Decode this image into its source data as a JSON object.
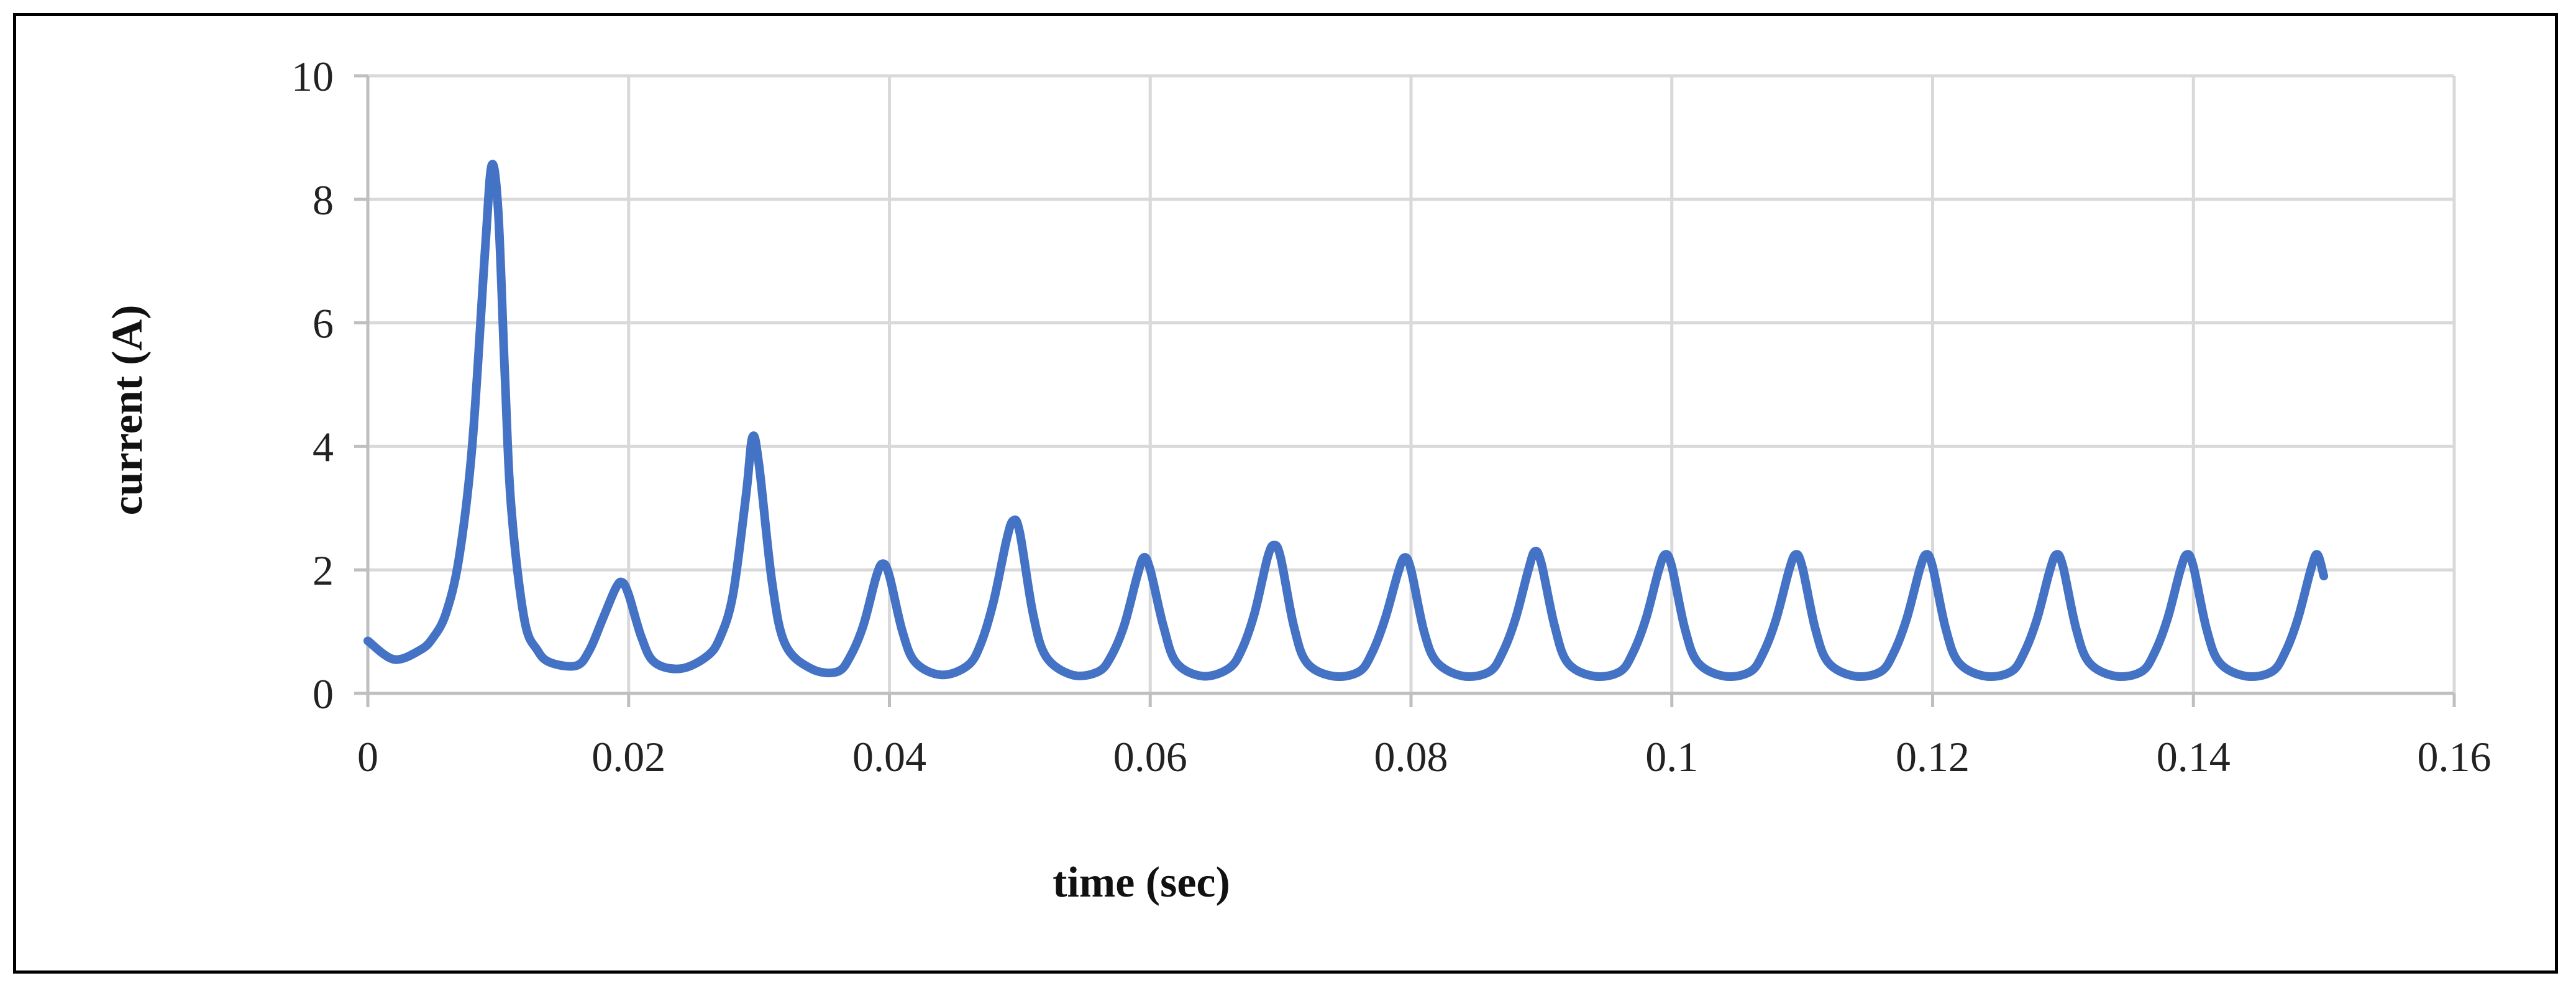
{
  "chart_data": {
    "type": "line",
    "title": "",
    "xlabel": "time (sec)",
    "ylabel": "current (A)",
    "xlim": [
      0,
      0.16
    ],
    "ylim": [
      0,
      10
    ],
    "x_ticks": [
      0,
      0.02,
      0.04,
      0.06,
      0.08,
      0.1,
      0.12,
      0.14,
      0.16
    ],
    "x_tick_labels": [
      "0",
      "0.02",
      "0.04",
      "0.06",
      "0.08",
      "0.1",
      "0.12",
      "0.14",
      "0.16"
    ],
    "y_ticks": [
      0,
      2,
      4,
      6,
      8,
      10
    ],
    "y_tick_labels": [
      "0",
      "2",
      "4",
      "6",
      "8",
      "10"
    ],
    "grid": true,
    "legend": "none",
    "line_color": "#4472C4",
    "series": [
      {
        "x": [
          0,
          0.002,
          0.004,
          0.005,
          0.006,
          0.007,
          0.008,
          0.009,
          0.0095,
          0.01,
          0.0105,
          0.011,
          0.012,
          0.013,
          0.014,
          0.016,
          0.017,
          0.018,
          0.019,
          0.0195,
          0.02,
          0.021,
          0.022,
          0.024,
          0.026,
          0.027,
          0.028,
          0.029,
          0.0295,
          0.03,
          0.031,
          0.032,
          0.034,
          0.036,
          0.037,
          0.038,
          0.039,
          0.0395,
          0.04,
          0.041,
          0.042,
          0.044,
          0.046,
          0.047,
          0.048,
          0.049,
          0.0495,
          0.05,
          0.051,
          0.052,
          0.054,
          0.056,
          0.057,
          0.058,
          0.059,
          0.0595,
          0.06,
          0.061,
          0.062,
          0.064,
          0.066,
          0.067,
          0.068,
          0.069,
          0.0695,
          0.07,
          0.071,
          0.072,
          0.074,
          0.076,
          0.077,
          0.078,
          0.079,
          0.0795,
          0.08,
          0.081,
          0.082,
          0.084,
          0.086,
          0.087,
          0.088,
          0.089,
          0.0895,
          0.09,
          0.091,
          0.092,
          0.094,
          0.096,
          0.097,
          0.098,
          0.099,
          0.0995,
          0.1,
          0.101,
          0.102,
          0.104,
          0.106,
          0.107,
          0.108,
          0.109,
          0.1095,
          0.11,
          0.111,
          0.112,
          0.114,
          0.116,
          0.117,
          0.118,
          0.119,
          0.1195,
          0.12,
          0.121,
          0.122,
          0.124,
          0.126,
          0.127,
          0.128,
          0.129,
          0.1295,
          0.13,
          0.131,
          0.132,
          0.134,
          0.136,
          0.137,
          0.138,
          0.139,
          0.1395,
          0.14,
          0.141,
          0.142,
          0.144,
          0.146,
          0.147,
          0.148,
          0.149,
          0.1495,
          0.15
        ],
        "values": [
          0.85,
          0.55,
          0.7,
          0.9,
          1.3,
          2.2,
          4.0,
          7.2,
          8.55,
          7.8,
          5.2,
          3.0,
          1.2,
          0.7,
          0.5,
          0.45,
          0.7,
          1.2,
          1.7,
          1.8,
          1.6,
          0.9,
          0.5,
          0.4,
          0.6,
          0.9,
          1.6,
          3.2,
          4.15,
          3.7,
          1.8,
          0.8,
          0.4,
          0.35,
          0.6,
          1.1,
          1.9,
          2.1,
          1.9,
          1.0,
          0.5,
          0.3,
          0.45,
          0.8,
          1.5,
          2.5,
          2.8,
          2.6,
          1.3,
          0.6,
          0.3,
          0.35,
          0.6,
          1.1,
          1.9,
          2.2,
          2.0,
          1.1,
          0.5,
          0.28,
          0.4,
          0.7,
          1.3,
          2.2,
          2.4,
          2.2,
          1.1,
          0.5,
          0.28,
          0.35,
          0.65,
          1.2,
          1.95,
          2.2,
          2.0,
          1.0,
          0.5,
          0.28,
          0.35,
          0.65,
          1.2,
          2.0,
          2.3,
          2.1,
          1.1,
          0.5,
          0.28,
          0.35,
          0.65,
          1.2,
          2.0,
          2.25,
          2.05,
          1.05,
          0.5,
          0.28,
          0.35,
          0.65,
          1.2,
          2.0,
          2.25,
          2.05,
          1.05,
          0.5,
          0.28,
          0.35,
          0.65,
          1.2,
          2.0,
          2.25,
          2.05,
          1.05,
          0.5,
          0.28,
          0.35,
          0.65,
          1.2,
          2.0,
          2.25,
          2.05,
          1.05,
          0.5,
          0.28,
          0.35,
          0.65,
          1.2,
          2.0,
          2.25,
          2.05,
          1.05,
          0.5,
          0.28,
          0.35,
          0.65,
          1.2,
          2.0,
          2.25,
          1.9
        ]
      }
    ]
  }
}
